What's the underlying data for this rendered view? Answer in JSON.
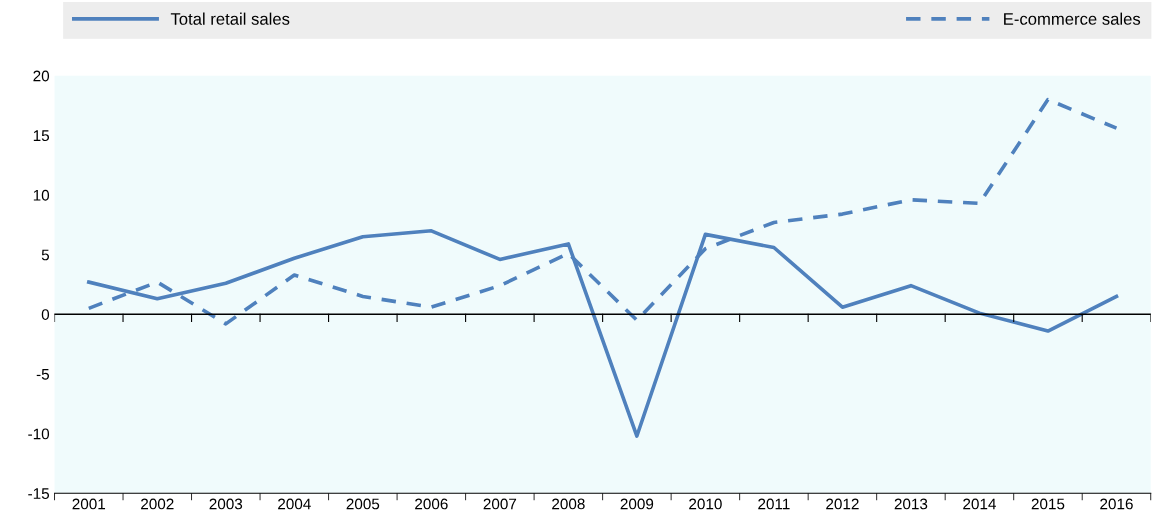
{
  "chart_data": {
    "type": "line",
    "categories": [
      "2001",
      "2002",
      "2003",
      "2004",
      "2005",
      "2006",
      "2007",
      "2008",
      "2009",
      "2010",
      "2011",
      "2012",
      "2013",
      "2014",
      "2015",
      "2016"
    ],
    "series": [
      {
        "name": "Total retail sales",
        "color": "#4f81bd",
        "line_style": "solid",
        "values": [
          2.7,
          1.3,
          2.6,
          4.7,
          6.5,
          7.0,
          4.6,
          5.9,
          -10.2,
          6.7,
          5.6,
          0.6,
          2.4,
          0.1,
          -1.4,
          1.5
        ]
      },
      {
        "name": "E-commerce sales",
        "color": "#4f81bd",
        "line_style": "dashed",
        "values": [
          0.5,
          2.7,
          -0.8,
          3.3,
          1.5,
          0.6,
          2.4,
          5.1,
          -0.5,
          5.5,
          7.7,
          8.4,
          9.6,
          9.3,
          18.0,
          15.6
        ]
      }
    ],
    "ylim": [
      -15,
      20
    ],
    "yticks": [
      -15,
      -10,
      -5,
      0,
      5,
      10,
      15,
      20
    ],
    "ref_lines": [
      {
        "axis": "y",
        "value": 0,
        "color": "#000000"
      }
    ],
    "grid": false,
    "legend": "top",
    "marker": "none"
  }
}
